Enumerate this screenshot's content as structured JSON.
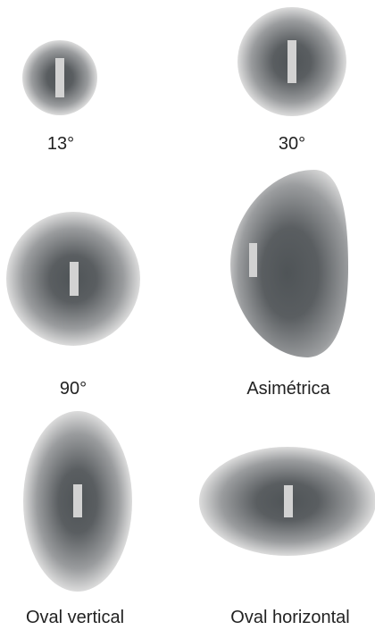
{
  "colors": {
    "center": "#4f5457",
    "edge": "#dcdcdc",
    "marker": "#d2d2d2",
    "label": "#222222"
  },
  "patterns": [
    {
      "id": "13",
      "label": "13°"
    },
    {
      "id": "30",
      "label": "30°"
    },
    {
      "id": "90",
      "label": "90°"
    },
    {
      "id": "asym",
      "label": "Asimétrica"
    },
    {
      "id": "oval-vertical",
      "label": "Oval vertical"
    },
    {
      "id": "oval-horizontal",
      "label": "Oval horizontal"
    }
  ]
}
